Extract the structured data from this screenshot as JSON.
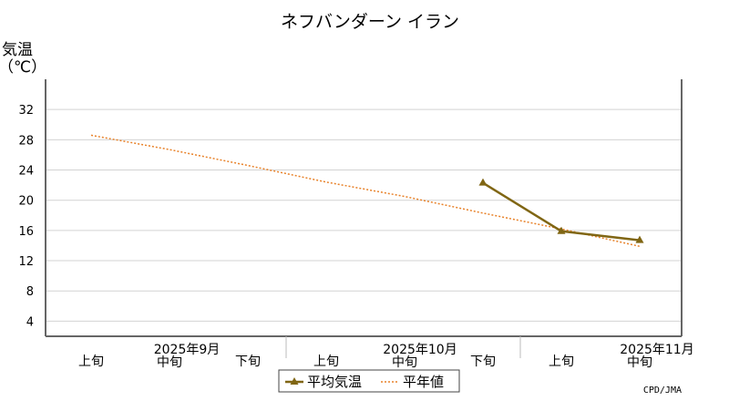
{
  "chart_data": {
    "type": "line",
    "title": "ネフバンダーン イラン",
    "ylabel": "気温",
    "yunit": "（℃）",
    "ylim": [
      2,
      36
    ],
    "yticks": [
      4,
      8,
      12,
      16,
      20,
      24,
      28,
      32
    ],
    "grid": true,
    "x_periods": [
      "上旬",
      "中旬",
      "下旬",
      "上旬",
      "中旬",
      "下旬",
      "上旬",
      "中旬"
    ],
    "x_months": [
      {
        "label": "2025年9月"
      },
      {
        "label": "2025年10月"
      },
      {
        "label": "2025年11月"
      }
    ],
    "series": [
      {
        "name": "平均気温",
        "color": "#806614",
        "style": "solid",
        "marker": "triangle",
        "values": [
          null,
          null,
          null,
          null,
          null,
          22.3,
          15.9,
          14.7
        ]
      },
      {
        "name": "平年値",
        "color": "#e8822a",
        "style": "dotted",
        "marker": "none",
        "values": [
          28.6,
          26.7,
          24.6,
          22.4,
          20.5,
          18.3,
          16.2,
          13.9
        ]
      }
    ],
    "legend": {
      "placement": "bottom-center"
    },
    "credit": "CPD/JMA"
  }
}
